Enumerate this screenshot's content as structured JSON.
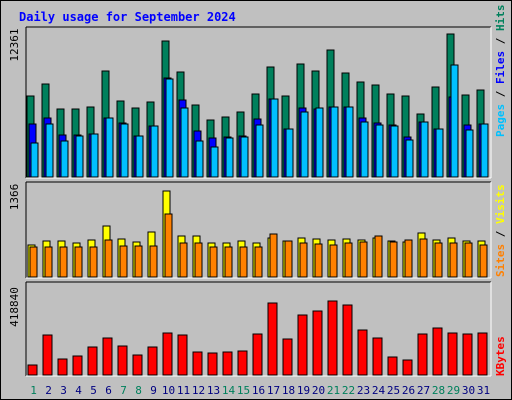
{
  "title": "Daily usage for September 2024",
  "colors": {
    "hits": "#00805c",
    "files": "#0000ff",
    "pages": "#00c0ff",
    "visits": "#ffff00",
    "sites": "#ff8000",
    "kbytes": "#ff0000",
    "title": "#0000ff",
    "weekend_day": "#00805c",
    "weekday": "#000080"
  },
  "chart_data": [
    {
      "type": "bar",
      "panel": "top",
      "categories": [
        "1",
        "2",
        "3",
        "4",
        "5",
        "6",
        "7",
        "8",
        "9",
        "10",
        "11",
        "12",
        "13",
        "14",
        "15",
        "16",
        "17",
        "18",
        "19",
        "20",
        "21",
        "22",
        "23",
        "24",
        "25",
        "26",
        "27",
        "28",
        "29",
        "30",
        "31"
      ],
      "ymax_label": "12361",
      "ymax": 12361,
      "right_axis_labels": [
        "Pages",
        "Files",
        "Hits"
      ],
      "series": [
        {
          "name": "Hits",
          "values": [
            6700,
            7700,
            5600,
            5600,
            5800,
            8800,
            6300,
            5700,
            6200,
            11300,
            8700,
            6000,
            4700,
            5000,
            5400,
            6900,
            9100,
            6700,
            9400,
            8800,
            10500,
            8600,
            7900,
            7600,
            6900,
            6700,
            5200,
            7500,
            11900,
            6800,
            7200
          ]
        },
        {
          "name": "Files",
          "values": [
            4400,
            4900,
            3500,
            3500,
            3600,
            4900,
            4500,
            3400,
            4200,
            8200,
            6400,
            3800,
            3200,
            3300,
            3400,
            4800,
            6500,
            4000,
            5700,
            5600,
            5800,
            5800,
            4900,
            4500,
            4300,
            3300,
            4600,
            4000,
            6600,
            4300,
            4400
          ]
        },
        {
          "name": "Pages",
          "values": [
            2800,
            4400,
            3000,
            3400,
            3600,
            4900,
            4400,
            3400,
            4200,
            8100,
            5700,
            3000,
            2500,
            3200,
            3300,
            4300,
            6500,
            4000,
            5400,
            5700,
            5800,
            5800,
            4600,
            4300,
            4200,
            3100,
            4600,
            4000,
            9300,
            3900,
            4400
          ]
        }
      ]
    },
    {
      "type": "bar",
      "panel": "middle",
      "categories": [
        "1",
        "2",
        "3",
        "4",
        "5",
        "6",
        "7",
        "8",
        "9",
        "10",
        "11",
        "12",
        "13",
        "14",
        "15",
        "16",
        "17",
        "18",
        "19",
        "20",
        "21",
        "22",
        "23",
        "24",
        "25",
        "26",
        "27",
        "28",
        "29",
        "30",
        "31"
      ],
      "ymax_label": "1366",
      "ymax": 1366,
      "right_axis_labels": [
        "Sites",
        "Visits"
      ],
      "series": [
        {
          "name": "Visits",
          "values": [
            460,
            530,
            530,
            500,
            540,
            740,
            550,
            510,
            660,
            1250,
            600,
            600,
            490,
            500,
            520,
            490,
            560,
            530,
            560,
            550,
            540,
            550,
            540,
            570,
            520,
            510,
            640,
            540,
            560,
            530,
            520
          ]
        },
        {
          "name": "Sites",
          "values": [
            430,
            430,
            430,
            430,
            430,
            540,
            450,
            450,
            450,
            920,
            490,
            490,
            430,
            430,
            430,
            430,
            620,
            520,
            500,
            480,
            460,
            500,
            510,
            600,
            510,
            540,
            550,
            500,
            500,
            490,
            460
          ]
        }
      ]
    },
    {
      "type": "bar",
      "panel": "bottom",
      "categories": [
        "1",
        "2",
        "3",
        "4",
        "5",
        "6",
        "7",
        "8",
        "9",
        "10",
        "11",
        "12",
        "13",
        "14",
        "15",
        "16",
        "17",
        "18",
        "19",
        "20",
        "21",
        "22",
        "23",
        "24",
        "25",
        "26",
        "27",
        "28",
        "29",
        "30",
        "31"
      ],
      "ymax_label": "418840",
      "ymax": 418840,
      "right_axis_labels": [
        "KBytes"
      ],
      "series": [
        {
          "name": "KBytes",
          "values": [
            44000,
            181000,
            75000,
            85000,
            126000,
            168000,
            131000,
            93000,
            129000,
            191000,
            183000,
            106000,
            101000,
            105000,
            110000,
            186000,
            326000,
            163000,
            275000,
            290000,
            339000,
            319000,
            206000,
            168000,
            83000,
            70000,
            187000,
            214000,
            190000,
            186000,
            192000
          ]
        }
      ]
    }
  ],
  "xaxis_weekend_days": [
    1,
    7,
    8,
    14,
    15,
    21,
    22,
    28,
    29
  ]
}
